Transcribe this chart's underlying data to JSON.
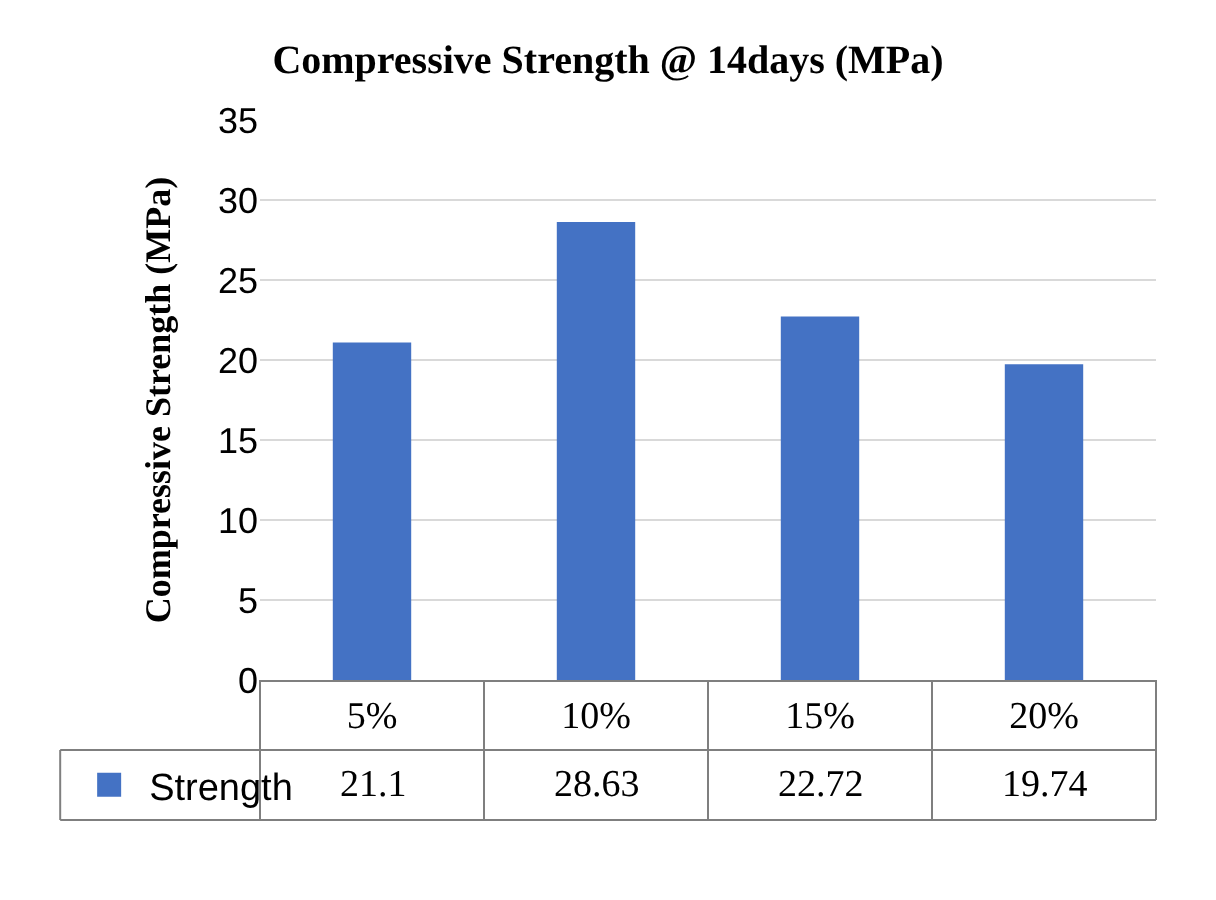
{
  "chart_data": {
    "type": "bar",
    "title": "Compressive Strength @ 14days (MPa)",
    "ylabel": "Compressive Strength (MPa)",
    "categories": [
      "5%",
      "10%",
      "15%",
      "20%"
    ],
    "series": [
      {
        "name": "Strength",
        "color": "#4472c4",
        "values": [
          21.1,
          28.63,
          22.72,
          19.74
        ]
      }
    ],
    "ylim": [
      0,
      35
    ],
    "yticks": [
      0,
      5,
      10,
      15,
      20,
      25,
      30,
      35
    ],
    "grid": "y",
    "legend": "bottom left",
    "data_labels": true
  }
}
